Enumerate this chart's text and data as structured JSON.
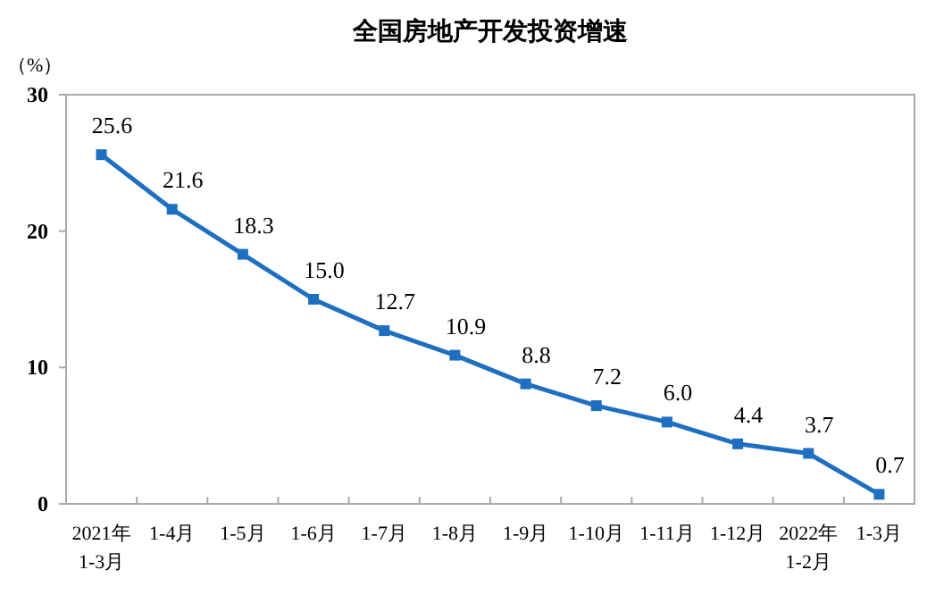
{
  "chart_data": {
    "type": "line",
    "title": "全国房地产开发投资增速",
    "ylabel": "（%）",
    "categories": [
      "2021年\n1-3月",
      "1-4月",
      "1-5月",
      "1-6月",
      "1-7月",
      "1-8月",
      "1-9月",
      "1-10月",
      "1-11月",
      "1-12月",
      "2022年\n1-2月",
      "1-3月"
    ],
    "series": [
      {
        "color": "#1f6fc0",
        "values": [
          25.6,
          21.6,
          18.3,
          15.0,
          12.7,
          10.9,
          8.8,
          7.2,
          6.0,
          4.4,
          3.7,
          0.7
        ],
        "value_labels": [
          "25.6",
          "21.6",
          "18.3",
          "15.0",
          "12.7",
          "10.9",
          "8.8",
          "7.2",
          "6.0",
          "4.4",
          "3.7",
          "0.7"
        ]
      }
    ],
    "ylim": [
      0,
      30
    ],
    "yticks": [
      0,
      10,
      20,
      30
    ],
    "marker": "square",
    "line_style": "solid",
    "grid": false,
    "data_labels": true
  }
}
